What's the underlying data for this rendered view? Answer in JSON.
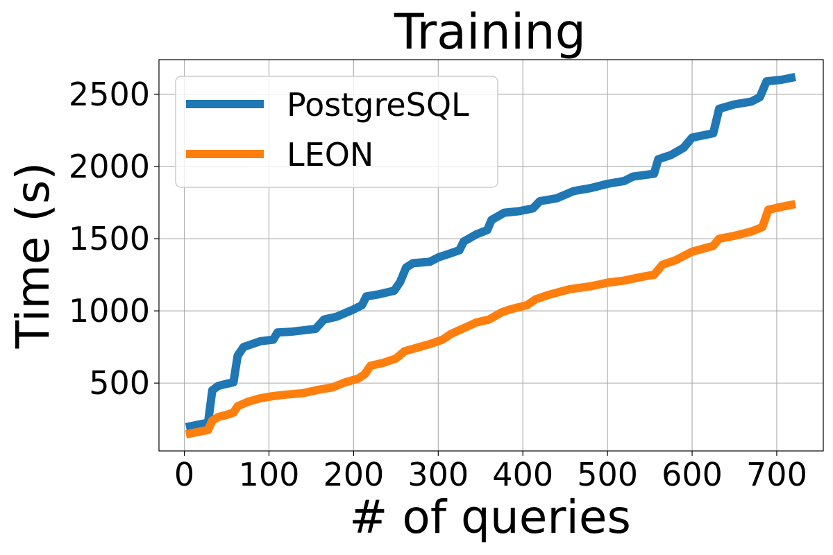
{
  "chart_data": {
    "type": "line",
    "title": "Training",
    "xlabel": "# of queries",
    "ylabel": "Time (s)",
    "xlim": [
      -30,
      755
    ],
    "ylim": [
      30,
      2740
    ],
    "xticks": [
      0,
      100,
      200,
      300,
      400,
      500,
      600,
      700
    ],
    "yticks": [
      500,
      1000,
      1500,
      2000,
      2500
    ],
    "grid": true,
    "legend_position": "top-left",
    "series": [
      {
        "name": "PostgreSQL",
        "color": "#1f77b4",
        "points": [
          [
            2,
            195
          ],
          [
            15,
            210
          ],
          [
            28,
            225
          ],
          [
            33,
            450
          ],
          [
            40,
            480
          ],
          [
            50,
            495
          ],
          [
            58,
            505
          ],
          [
            63,
            690
          ],
          [
            70,
            750
          ],
          [
            80,
            770
          ],
          [
            90,
            790
          ],
          [
            105,
            800
          ],
          [
            110,
            850
          ],
          [
            125,
            855
          ],
          [
            140,
            865
          ],
          [
            155,
            875
          ],
          [
            165,
            940
          ],
          [
            180,
            960
          ],
          [
            200,
            1010
          ],
          [
            210,
            1040
          ],
          [
            215,
            1100
          ],
          [
            230,
            1115
          ],
          [
            248,
            1140
          ],
          [
            255,
            1200
          ],
          [
            262,
            1300
          ],
          [
            270,
            1330
          ],
          [
            290,
            1340
          ],
          [
            300,
            1370
          ],
          [
            315,
            1400
          ],
          [
            325,
            1420
          ],
          [
            330,
            1480
          ],
          [
            345,
            1530
          ],
          [
            358,
            1560
          ],
          [
            363,
            1630
          ],
          [
            378,
            1680
          ],
          [
            395,
            1690
          ],
          [
            412,
            1710
          ],
          [
            420,
            1760
          ],
          [
            440,
            1780
          ],
          [
            460,
            1830
          ],
          [
            480,
            1850
          ],
          [
            500,
            1880
          ],
          [
            520,
            1900
          ],
          [
            530,
            1930
          ],
          [
            555,
            1950
          ],
          [
            560,
            2050
          ],
          [
            575,
            2080
          ],
          [
            590,
            2130
          ],
          [
            600,
            2200
          ],
          [
            625,
            2230
          ],
          [
            632,
            2400
          ],
          [
            650,
            2430
          ],
          [
            670,
            2450
          ],
          [
            680,
            2480
          ],
          [
            688,
            2590
          ],
          [
            705,
            2600
          ],
          [
            722,
            2620
          ]
        ]
      },
      {
        "name": "LEON",
        "color": "#ff7f0e",
        "points": [
          [
            2,
            145
          ],
          [
            15,
            160
          ],
          [
            28,
            175
          ],
          [
            33,
            240
          ],
          [
            40,
            265
          ],
          [
            50,
            280
          ],
          [
            58,
            295
          ],
          [
            63,
            340
          ],
          [
            75,
            370
          ],
          [
            90,
            395
          ],
          [
            105,
            410
          ],
          [
            120,
            420
          ],
          [
            140,
            430
          ],
          [
            160,
            455
          ],
          [
            175,
            470
          ],
          [
            190,
            505
          ],
          [
            205,
            530
          ],
          [
            213,
            560
          ],
          [
            220,
            620
          ],
          [
            235,
            640
          ],
          [
            250,
            670
          ],
          [
            260,
            720
          ],
          [
            275,
            745
          ],
          [
            290,
            770
          ],
          [
            305,
            800
          ],
          [
            315,
            840
          ],
          [
            330,
            880
          ],
          [
            345,
            920
          ],
          [
            360,
            940
          ],
          [
            375,
            990
          ],
          [
            385,
            1010
          ],
          [
            405,
            1040
          ],
          [
            415,
            1080
          ],
          [
            430,
            1110
          ],
          [
            455,
            1150
          ],
          [
            480,
            1170
          ],
          [
            500,
            1195
          ],
          [
            520,
            1210
          ],
          [
            540,
            1235
          ],
          [
            555,
            1250
          ],
          [
            565,
            1320
          ],
          [
            580,
            1350
          ],
          [
            600,
            1410
          ],
          [
            625,
            1450
          ],
          [
            632,
            1500
          ],
          [
            650,
            1520
          ],
          [
            670,
            1550
          ],
          [
            683,
            1580
          ],
          [
            690,
            1700
          ],
          [
            705,
            1720
          ],
          [
            722,
            1740
          ]
        ]
      }
    ]
  }
}
